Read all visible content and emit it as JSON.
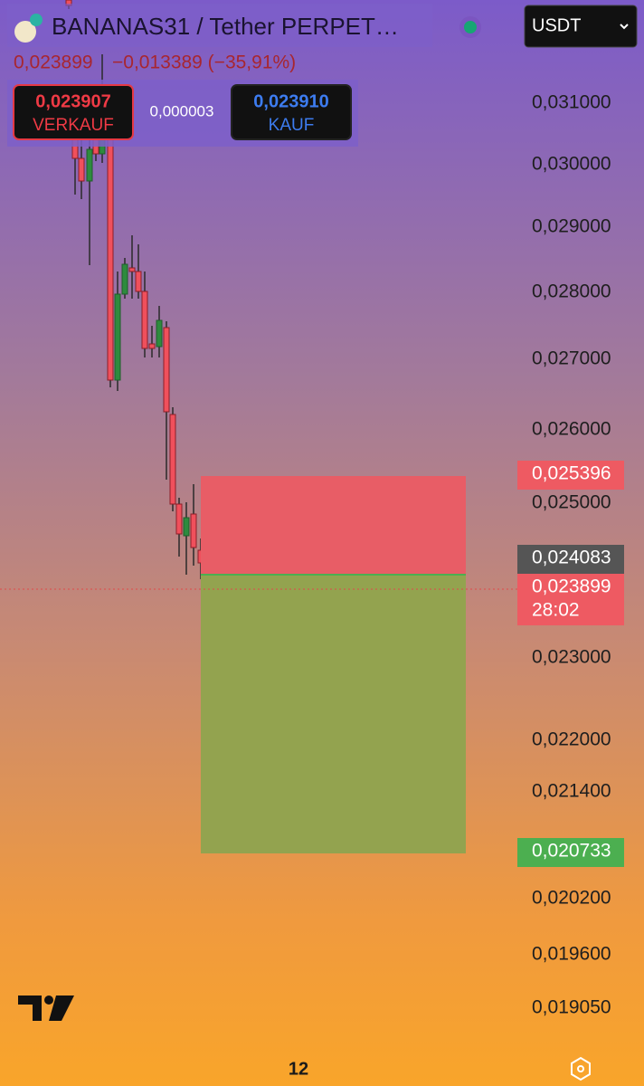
{
  "header": {
    "title": "BANANAS31 / Tether PERPET…",
    "last": "0,023899",
    "change": "−0,013389 (−35,91%)",
    "currency": "USDT"
  },
  "trade": {
    "sell_price": "0,023907",
    "sell_label": "VERKAUF",
    "spread": "0,000003",
    "buy_price": "0,023910",
    "buy_label": "KAUF"
  },
  "price_axis": [
    "0,031000",
    "0,030000",
    "0,029000",
    "0,028000",
    "0,027000",
    "0,026000",
    "0,025000",
    "0,023000",
    "0,022000",
    "0,021400",
    "0,020200",
    "0,019600",
    "0,019050"
  ],
  "badges": {
    "stop": "0,025396",
    "entry": "0,024083",
    "current": "0,023899",
    "countdown": "28:02",
    "target": "0,020733"
  },
  "footer": {
    "interval": "12"
  }
}
